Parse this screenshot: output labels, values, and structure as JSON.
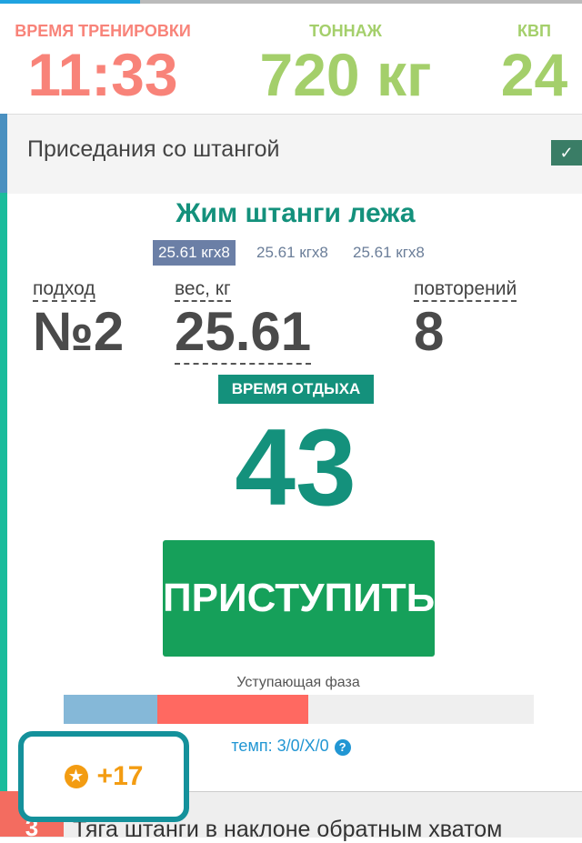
{
  "progress": {
    "fraction": 0.24,
    "color": "#1fa3e0"
  },
  "stats": [
    {
      "label": "ВРЕМЯ ТРЕНИРОВКИ",
      "value": "11:33",
      "color": "#f88379"
    },
    {
      "label": "ТОННАЖ",
      "value": "720 кг",
      "color": "#a4cf6b"
    },
    {
      "label": "КВП",
      "value": "24",
      "color": "#a4cf6b"
    }
  ],
  "completed_exercise": {
    "name": "Приседания со штангой",
    "checked": true
  },
  "current": {
    "title": "Жим штанги лежа",
    "sets": [
      "25.61 кгх8",
      "25.61 кгх8",
      "25.61 кгх8"
    ],
    "set_label": "подход",
    "set_value": "№2",
    "weight_label": "вес, кг",
    "weight_value": "25.61",
    "reps_label": "повторений",
    "reps_value": "8",
    "rest_label": "ВРЕМЯ ОТДЫХА",
    "rest_value": "43",
    "start_button": "ПРИСТУПИТЬ",
    "phase_label": "Уступающая фаза",
    "phase_bar": [
      {
        "fraction": 0.2,
        "color": "#85b8d8"
      },
      {
        "fraction": 0.32,
        "color": "#ff6961"
      }
    ],
    "tempo": "темп: 3/0/X/0",
    "help_icon": "?"
  },
  "points": "+17",
  "next_exercise": {
    "number": "3",
    "name": "Тяга штанги в наклоне обратным хватом"
  }
}
